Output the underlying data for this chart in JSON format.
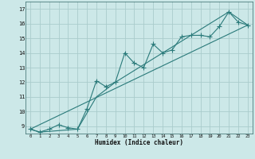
{
  "xlabel": "Humidex (Indice chaleur)",
  "bg_color": "#cce8e8",
  "grid_color": "#aacccc",
  "line_color": "#2a7a7a",
  "xlim": [
    -0.5,
    23.5
  ],
  "ylim": [
    8.5,
    17.5
  ],
  "yticks": [
    9,
    10,
    11,
    12,
    13,
    14,
    15,
    16,
    17
  ],
  "xticks": [
    0,
    1,
    2,
    3,
    4,
    5,
    6,
    7,
    8,
    9,
    10,
    11,
    12,
    13,
    14,
    15,
    16,
    17,
    18,
    19,
    20,
    21,
    22,
    23
  ],
  "line1_x": [
    0,
    1,
    2,
    3,
    4,
    5,
    6,
    7,
    8,
    9,
    10,
    11,
    12,
    13,
    14,
    15,
    16,
    17,
    18,
    19,
    20,
    21,
    22,
    23
  ],
  "line1_y": [
    8.8,
    8.6,
    8.8,
    9.1,
    8.9,
    8.8,
    10.2,
    12.1,
    11.7,
    12.0,
    14.0,
    13.3,
    13.0,
    14.6,
    14.0,
    14.2,
    15.1,
    15.2,
    15.2,
    15.1,
    15.8,
    16.8,
    16.1,
    15.9
  ],
  "line2_x": [
    0,
    23
  ],
  "line2_y": [
    8.8,
    15.9
  ],
  "line3_x": [
    0,
    1,
    5,
    7,
    9,
    14,
    21,
    23
  ],
  "line3_y": [
    8.8,
    8.6,
    8.8,
    11.0,
    12.0,
    14.0,
    16.8,
    15.9
  ]
}
